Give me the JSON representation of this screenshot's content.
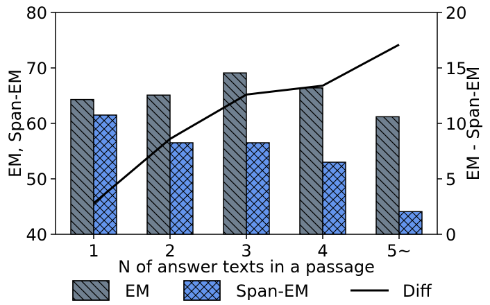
{
  "chart_data": {
    "type": "bar",
    "categories": [
      "1",
      "2",
      "3",
      "4",
      "5~"
    ],
    "series": [
      {
        "name": "EM",
        "values": [
          64.3,
          65.1,
          69.1,
          66.4,
          61.2
        ],
        "axis": "left",
        "color": "#708090",
        "hatch": "backslash"
      },
      {
        "name": "Span-EM",
        "values": [
          61.5,
          56.5,
          56.5,
          53.0,
          44.1
        ],
        "axis": "left",
        "color": "#6495ed",
        "hatch": "cross"
      },
      {
        "name": "Diff",
        "values": [
          2.8,
          8.6,
          12.6,
          13.4,
          17.1
        ],
        "axis": "right",
        "type": "line",
        "color": "#000000"
      }
    ],
    "xlabel": "N of answer texts in a passage",
    "ylabel": "EM, Span-EM",
    "y2label": "EM - Span-EM",
    "ylim": [
      40,
      80
    ],
    "y2lim": [
      0,
      20
    ],
    "yticks": [
      "40",
      "50",
      "60",
      "70",
      "80"
    ],
    "y2ticks": [
      "0",
      "5",
      "10",
      "15",
      "20"
    ],
    "grid": false,
    "legend": {
      "placement": "bottom",
      "entries": [
        "EM",
        "Span-EM",
        "Diff"
      ]
    }
  }
}
